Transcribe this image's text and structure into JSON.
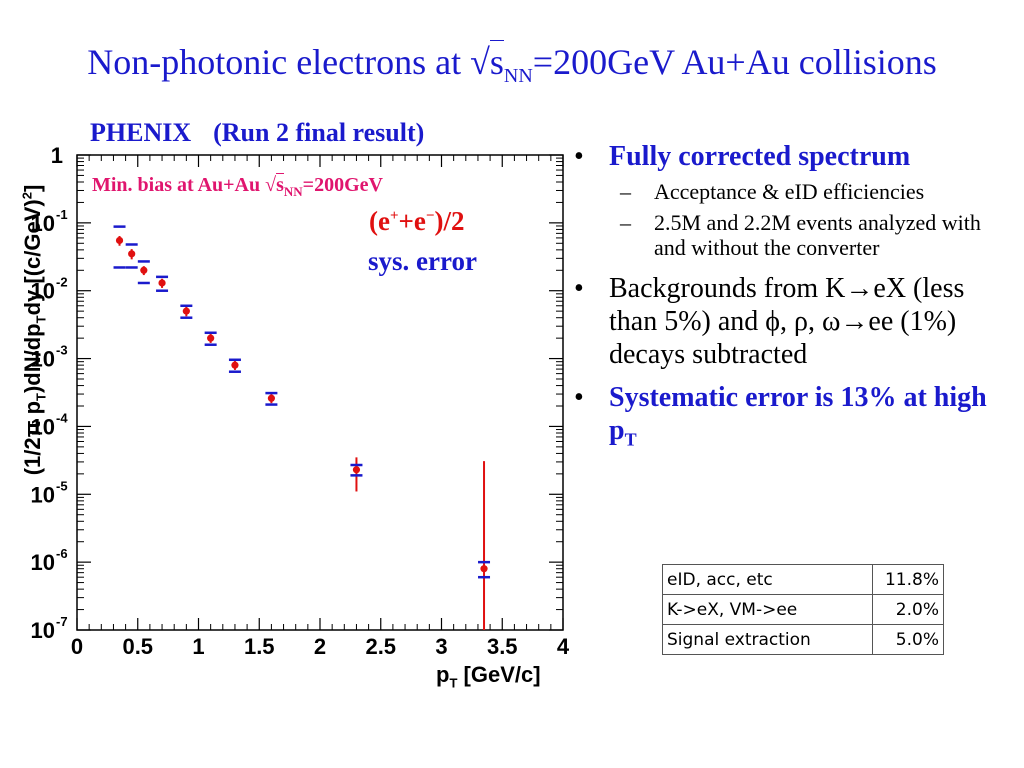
{
  "slide": {
    "title_prefix": "Non-photonic electrons at ",
    "title_sqrt": "√",
    "title_s": "s",
    "title_sub": "NN",
    "title_suffix": "=200GeV Au+Au collisions"
  },
  "chart_data": {
    "type": "scatter",
    "title_left": "PHENIX",
    "title_right": "(Run 2 final result)",
    "annotation_minbias_prefix": "Min. bias at Au+Au ",
    "annotation_minbias_sqrt": "√",
    "annotation_minbias_s": "s",
    "annotation_minbias_sub": "NN",
    "annotation_minbias_suffix": "=200GeV",
    "annotation_ee_open": "(e",
    "annotation_ee_plus": "+",
    "annotation_ee_mid": "+e",
    "annotation_ee_minus": "−",
    "annotation_ee_close": ")/2",
    "annotation_sys": "sys. error",
    "xlabel_p": "p",
    "xlabel_sub": "T",
    "xlabel_rest": " [GeV/c]",
    "ylabel": "(1/2π pT)dN/dpTdy [(c/GeV)²]",
    "ylabel_parts": [
      "(1/2",
      "π",
      " p",
      "T",
      ")dN/dp",
      "T",
      "dy [(c/GeV)",
      "2",
      "]"
    ],
    "xlim": [
      0,
      4
    ],
    "ylim": [
      1e-07,
      1
    ],
    "log_y": true,
    "x_ticks": [
      "0",
      "0.5",
      "1",
      "1.5",
      "2",
      "2.5",
      "3",
      "3.5",
      "4"
    ],
    "y_ticks": [
      {
        "base": "1",
        "exp": ""
      },
      {
        "base": "10",
        "exp": "-1"
      },
      {
        "base": "10",
        "exp": "-2"
      },
      {
        "base": "10",
        "exp": "-3"
      },
      {
        "base": "10",
        "exp": "-4"
      },
      {
        "base": "10",
        "exp": "-5"
      },
      {
        "base": "10",
        "exp": "-6"
      },
      {
        "base": "10",
        "exp": "-7"
      }
    ],
    "colors": {
      "stat": "#e01010",
      "sys": "#1a1acc"
    },
    "series": [
      {
        "name": "(e++e−)/2",
        "x": [
          0.35,
          0.45,
          0.55,
          0.7,
          0.9,
          1.1,
          1.3,
          1.6,
          2.3,
          3.35
        ],
        "y": [
          0.055,
          0.035,
          0.02,
          0.013,
          0.005,
          0.002,
          0.0008,
          0.00026,
          2.3e-05,
          8e-07
        ],
        "stat_err": [
          0.009,
          0.006,
          0.003,
          0.002,
          0.0008,
          0.0003,
          0.00012,
          4e-05,
          1.2e-05,
          3e-05
        ],
        "sys_err": [
          0.033,
          0.013,
          0.007,
          0.003,
          0.001,
          0.0004,
          0.00016,
          5e-05,
          4e-06,
          2e-07
        ]
      }
    ]
  },
  "bullets": [
    {
      "text": "Fully corrected spectrum",
      "style": "blue",
      "sub": [
        "Acceptance & eID efficiencies",
        "2.5M and 2.2M events analyzed with and without the converter"
      ]
    },
    {
      "text": "Backgrounds from K→eX (less than 5%) and ϕ, ρ, ω→ee (1%) decays subtracted",
      "style": "normal",
      "sub": []
    },
    {
      "text_main": "Systematic error is 13% at high p",
      "text_sub": "T",
      "style": "blue",
      "sub": []
    }
  ],
  "bullet_marker": "•",
  "dash_marker": "–",
  "syst_table": [
    {
      "name": "eID, acc, etc",
      "value": "11.8%"
    },
    {
      "name": "K->eX, VM->ee",
      "value": "2.0%"
    },
    {
      "name": "Signal extraction",
      "value": "5.0%"
    }
  ]
}
